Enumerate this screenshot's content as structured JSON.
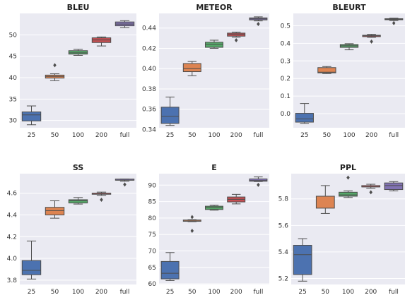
{
  "categories_note": "",
  "colors": [
    "#4c72b0",
    "#dd8452",
    "#55a868",
    "#c44e52",
    "#8172b3"
  ],
  "chart_data": [
    {
      "type": "box",
      "title": "BLEU",
      "categories": [
        "25",
        "50",
        "100",
        "200",
        "full"
      ],
      "ylim": [
        28.3,
        55.0
      ],
      "yticks": [
        30,
        35,
        40,
        45,
        50
      ],
      "ytick_labels": [
        "30",
        "35",
        "40",
        "45",
        "50"
      ],
      "boxes": [
        {
          "whislo": 29.0,
          "q1": 29.9,
          "med": 31.3,
          "q3": 32.0,
          "whishi": 33.4,
          "fliers": []
        },
        {
          "whislo": 39.3,
          "q1": 39.9,
          "med": 40.3,
          "q3": 40.6,
          "whishi": 40.9,
          "fliers": [
            42.9
          ]
        },
        {
          "whislo": 45.2,
          "q1": 45.5,
          "med": 45.8,
          "q3": 46.3,
          "whishi": 46.6,
          "fliers": []
        },
        {
          "whislo": 47.4,
          "q1": 48.2,
          "med": 48.8,
          "q3": 49.3,
          "whishi": 49.5,
          "fliers": []
        },
        {
          "whislo": 51.7,
          "q1": 52.1,
          "med": 52.5,
          "q3": 53.0,
          "whishi": 53.3,
          "fliers": []
        }
      ]
    },
    {
      "type": "box",
      "title": "METEOR",
      "categories": [
        "25",
        "50",
        "100",
        "200",
        "full"
      ],
      "ylim": [
        0.3417,
        0.4544
      ],
      "yticks": [
        0.34,
        0.36,
        0.38,
        0.4,
        0.42,
        0.44
      ],
      "ytick_labels": [
        "0.34",
        "0.36",
        "0.38",
        "0.40",
        "0.42",
        "0.44"
      ],
      "boxes": [
        {
          "whislo": 0.344,
          "q1": 0.346,
          "med": 0.353,
          "q3": 0.362,
          "whishi": 0.372,
          "fliers": []
        },
        {
          "whislo": 0.393,
          "q1": 0.397,
          "med": 0.4,
          "q3": 0.405,
          "whishi": 0.407,
          "fliers": []
        },
        {
          "whislo": 0.42,
          "q1": 0.421,
          "med": 0.424,
          "q3": 0.426,
          "whishi": 0.428,
          "fliers": []
        },
        {
          "whislo": 0.431,
          "q1": 0.432,
          "med": 0.434,
          "q3": 0.435,
          "whishi": 0.436,
          "fliers": [
            0.428
          ]
        },
        {
          "whislo": 0.447,
          "q1": 0.448,
          "med": 0.449,
          "q3": 0.45,
          "whishi": 0.451,
          "fliers": [
            0.444
          ]
        }
      ]
    },
    {
      "type": "box",
      "title": "BLEURT",
      "categories": [
        "25",
        "50",
        "100",
        "200",
        "full"
      ],
      "ylim": [
        -0.08,
        0.57
      ],
      "yticks": [
        0.0,
        0.1,
        0.2,
        0.3,
        0.4,
        0.5
      ],
      "ytick_labels": [
        "0.0",
        "0.1",
        "0.2",
        "0.3",
        "0.4",
        "0.5"
      ],
      "boxes": [
        {
          "whislo": -0.055,
          "q1": -0.048,
          "med": -0.03,
          "q3": 0.002,
          "whishi": 0.058,
          "fliers": []
        },
        {
          "whislo": 0.228,
          "q1": 0.232,
          "med": 0.236,
          "q3": 0.262,
          "whishi": 0.268,
          "fliers": []
        },
        {
          "whislo": 0.363,
          "q1": 0.377,
          "med": 0.386,
          "q3": 0.393,
          "whishi": 0.398,
          "fliers": []
        },
        {
          "whislo": 0.434,
          "q1": 0.438,
          "med": 0.443,
          "q3": 0.446,
          "whishi": 0.451,
          "fliers": [
            0.41
          ]
        },
        {
          "whislo": 0.529,
          "q1": 0.534,
          "med": 0.538,
          "q3": 0.54,
          "whishi": 0.543,
          "fliers": [
            0.515
          ]
        }
      ]
    },
    {
      "type": "box",
      "title": "SS",
      "categories": [
        "25",
        "50",
        "100",
        "200",
        "full"
      ],
      "ylim": [
        3.76,
        4.78
      ],
      "yticks": [
        3.8,
        4.0,
        4.2,
        4.4,
        4.6
      ],
      "ytick_labels": [
        "3.8",
        "4.0",
        "4.2",
        "4.4",
        "4.6"
      ],
      "boxes": [
        {
          "whislo": 3.81,
          "q1": 3.85,
          "med": 3.89,
          "q3": 3.98,
          "whishi": 4.16,
          "fliers": []
        },
        {
          "whislo": 4.37,
          "q1": 4.4,
          "med": 4.44,
          "q3": 4.47,
          "whishi": 4.53,
          "fliers": []
        },
        {
          "whislo": 4.5,
          "q1": 4.51,
          "med": 4.53,
          "q3": 4.54,
          "whishi": 4.56,
          "fliers": []
        },
        {
          "whislo": 4.58,
          "q1": 4.59,
          "med": 4.6,
          "q3": 4.6,
          "whishi": 4.61,
          "fliers": [
            4.54
          ]
        },
        {
          "whislo": 4.71,
          "q1": 4.72,
          "med": 4.72,
          "q3": 4.73,
          "whishi": 4.73,
          "fliers": [
            4.68
          ]
        }
      ]
    },
    {
      "type": "box",
      "title": "E",
      "categories": [
        "25",
        "50",
        "100",
        "200",
        "full"
      ],
      "ylim": [
        59.8,
        93.5
      ],
      "yticks": [
        60,
        65,
        70,
        75,
        80,
        85,
        90
      ],
      "ytick_labels": [
        "60",
        "65",
        "70",
        "75",
        "80",
        "85",
        "90"
      ],
      "boxes": [
        {
          "whislo": 61.0,
          "q1": 61.5,
          "med": 63.2,
          "q3": 66.8,
          "whishi": 69.5,
          "fliers": []
        },
        {
          "whislo": 78.9,
          "q1": 79.0,
          "med": 79.3,
          "q3": 79.4,
          "whishi": 79.5,
          "fliers": [
            80.3,
            76.1
          ]
        },
        {
          "whislo": 82.4,
          "q1": 82.6,
          "med": 83.2,
          "q3": 83.6,
          "whishi": 83.9,
          "fliers": []
        },
        {
          "whislo": 84.3,
          "q1": 84.9,
          "med": 85.7,
          "q3": 86.4,
          "whishi": 87.2,
          "fliers": []
        },
        {
          "whislo": 91.1,
          "q1": 91.2,
          "med": 91.4,
          "q3": 91.9,
          "whishi": 92.5,
          "fliers": [
            90.1
          ]
        }
      ]
    },
    {
      "type": "box",
      "title": "PPL",
      "categories": [
        "25",
        "50",
        "100",
        "200",
        "full"
      ],
      "ylim": [
        5.155,
        5.99
      ],
      "yticks": [
        5.2,
        5.4,
        5.6,
        5.8
      ],
      "ytick_labels": [
        "5.2",
        "5.4",
        "5.6",
        "5.8"
      ],
      "boxes": [
        {
          "whislo": 5.18,
          "q1": 5.23,
          "med": 5.38,
          "q3": 5.45,
          "whishi": 5.5,
          "fliers": []
        },
        {
          "whislo": 5.69,
          "q1": 5.73,
          "med": 5.82,
          "q3": 5.82,
          "whishi": 5.9,
          "fliers": []
        },
        {
          "whislo": 5.81,
          "q1": 5.82,
          "med": 5.83,
          "q3": 5.85,
          "whishi": 5.86,
          "fliers": [
            5.96
          ]
        },
        {
          "whislo": 5.88,
          "q1": 5.89,
          "med": 5.89,
          "q3": 5.9,
          "whishi": 5.91,
          "fliers": [
            5.85
          ]
        },
        {
          "whislo": 5.86,
          "q1": 5.87,
          "med": 5.9,
          "q3": 5.92,
          "whishi": 5.93,
          "fliers": []
        }
      ]
    }
  ]
}
